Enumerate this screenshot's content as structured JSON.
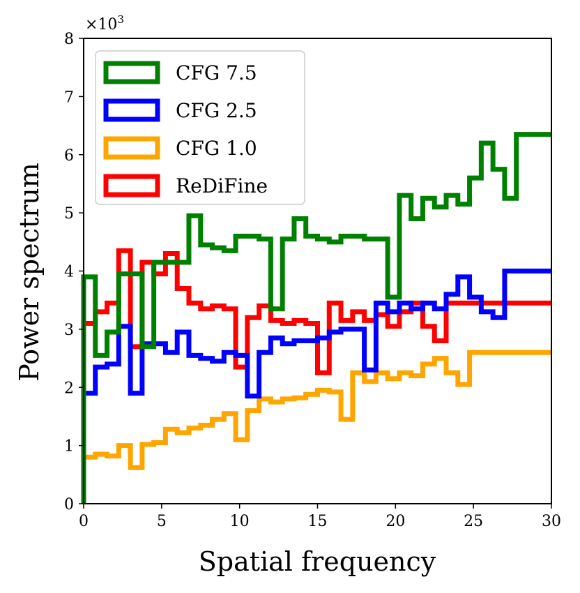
{
  "chart_data": {
    "type": "line",
    "style": "step-histogram",
    "xlabel": "Spatial frequency",
    "ylabel": "Power spectrum",
    "y_multiplier_base": "×10",
    "y_multiplier_exp": "3",
    "xlim": [
      0,
      30
    ],
    "ylim": [
      0,
      8
    ],
    "xticks": [
      0,
      5,
      10,
      15,
      20,
      25,
      30
    ],
    "yticks": [
      0,
      1,
      2,
      3,
      4,
      5,
      6,
      7,
      8
    ],
    "bin_edges": [
      0,
      0.75,
      1.5,
      2.25,
      3,
      3.75,
      4.5,
      5.25,
      6,
      6.75,
      7.5,
      8.25,
      9,
      9.75,
      10.5,
      11.25,
      12,
      12.75,
      13.5,
      14.25,
      15,
      15.75,
      16.5,
      17.25,
      18,
      18.75,
      19.5,
      20.25,
      21,
      21.75,
      22.5,
      23.25,
      24,
      24.75,
      25.5,
      26.25,
      27,
      27.75,
      28.5,
      29.25,
      30
    ],
    "legend_position": "upper-left",
    "series": [
      {
        "name": "CFG 7.5",
        "color": "#008000",
        "values": [
          3.9,
          2.55,
          2.95,
          3.95,
          3.95,
          2.7,
          4.15,
          4.15,
          4.15,
          4.95,
          4.45,
          4.4,
          4.35,
          4.6,
          4.6,
          4.55,
          3.35,
          4.55,
          4.9,
          4.6,
          4.55,
          4.5,
          4.6,
          4.6,
          4.55,
          4.55,
          3.55,
          5.3,
          4.9,
          5.25,
          5.1,
          5.3,
          5.15,
          5.6,
          6.2,
          5.75,
          5.25,
          6.35,
          6.35,
          6.35
        ]
      },
      {
        "name": "CFG 2.5",
        "color": "#0000ff",
        "values": [
          1.9,
          2.35,
          2.4,
          3.05,
          1.9,
          2.75,
          2.75,
          2.6,
          2.95,
          2.55,
          2.5,
          2.45,
          2.6,
          2.55,
          1.85,
          2.6,
          2.85,
          2.75,
          2.8,
          2.8,
          2.85,
          2.95,
          3.0,
          3.0,
          2.3,
          3.45,
          3.3,
          3.45,
          3.35,
          3.45,
          3.35,
          3.6,
          3.9,
          3.55,
          3.3,
          3.2,
          4.0,
          4.0,
          4.0,
          4.0
        ]
      },
      {
        "name": "CFG 1.0",
        "color": "#ffa500",
        "values": [
          0.8,
          0.85,
          0.82,
          1.0,
          0.62,
          1.02,
          1.05,
          1.28,
          1.22,
          1.3,
          1.35,
          1.45,
          1.55,
          1.1,
          1.6,
          1.8,
          1.75,
          1.8,
          1.82,
          1.88,
          1.95,
          1.92,
          1.45,
          2.25,
          2.1,
          2.25,
          2.15,
          2.25,
          2.2,
          2.4,
          2.5,
          2.25,
          2.05,
          2.6,
          2.6,
          2.6,
          2.6,
          2.6,
          2.6,
          2.6
        ]
      },
      {
        "name": "ReDiFine",
        "color": "#ff0000",
        "values": [
          3.1,
          3.3,
          3.45,
          4.35,
          2.7,
          4.15,
          3.95,
          4.3,
          3.7,
          3.45,
          3.35,
          3.4,
          3.35,
          2.35,
          3.2,
          3.4,
          3.15,
          3.1,
          3.15,
          3.1,
          2.25,
          3.45,
          3.15,
          3.3,
          3.15,
          3.25,
          3.05,
          3.3,
          3.45,
          3.05,
          2.8,
          3.45,
          3.45,
          3.45,
          3.45,
          3.45,
          3.45,
          3.45,
          3.45,
          3.45
        ]
      }
    ],
    "legend_order": [
      0,
      1,
      2,
      3
    ]
  }
}
